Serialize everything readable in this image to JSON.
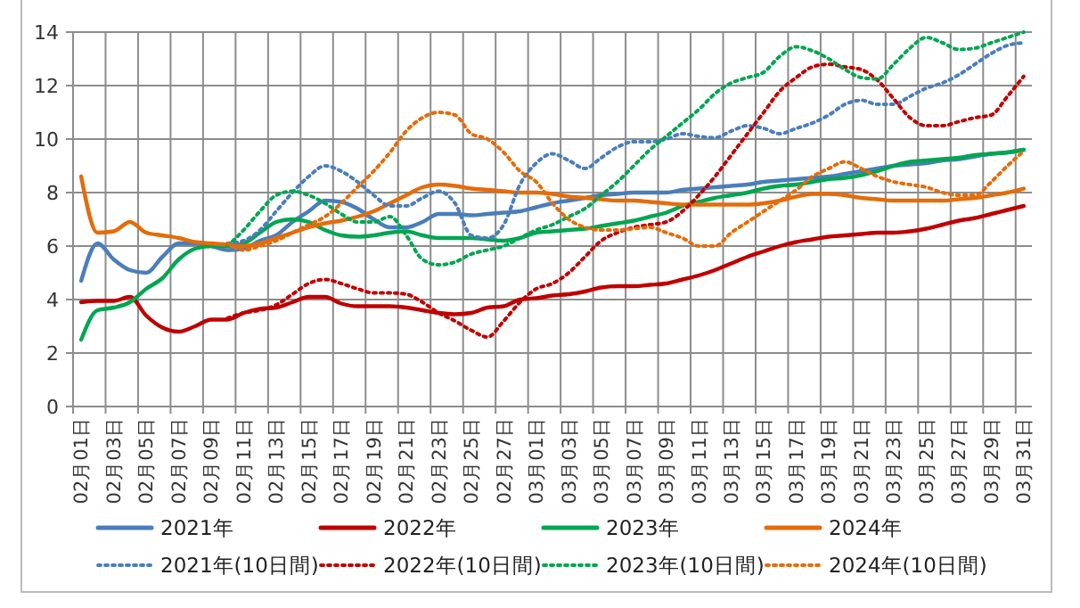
{
  "chart_data": {
    "type": "line",
    "categories": [
      "02月01日",
      null,
      "02月03日",
      null,
      "02月05日",
      null,
      "02月07日",
      null,
      "02月09日",
      null,
      "02月11日",
      null,
      "02月13日",
      null,
      "02月15日",
      null,
      "02月17日",
      null,
      "02月19日",
      null,
      "02月21日",
      null,
      "02月23日",
      null,
      "02月25日",
      null,
      "02月27日",
      null,
      "03月01日",
      null,
      "03月03日",
      null,
      "03月05日",
      null,
      "03月07日",
      null,
      "03月09日",
      null,
      "03月11日",
      null,
      "03月13日",
      null,
      "03月15日",
      null,
      "03月17日",
      null,
      "03月19日",
      null,
      "03月21日",
      null,
      "03月23日",
      null,
      "03月25日",
      null,
      "03月27日",
      null,
      "03月29日",
      null,
      "03月31日"
    ],
    "ylim": [
      0,
      14
    ],
    "yticks": [
      0,
      2,
      4,
      6,
      8,
      10,
      12,
      14
    ],
    "grid": true,
    "legend": "bottom",
    "marker": "none",
    "series": [
      {
        "name": "2021年",
        "color": "#4a7ebb",
        "line_style": "solid",
        "values": [
          4.7,
          6.1,
          5.5,
          5.1,
          5.0,
          5.6,
          6.1,
          6.1,
          6.0,
          5.85,
          5.9,
          6.2,
          6.4,
          6.9,
          7.3,
          7.7,
          7.65,
          7.4,
          7.0,
          6.7,
          6.7,
          6.9,
          7.2,
          7.2,
          7.15,
          7.2,
          7.25,
          7.3,
          7.45,
          7.6,
          7.7,
          7.8,
          7.9,
          7.95,
          8.0,
          8.0,
          8.0,
          8.1,
          8.15,
          8.2,
          8.25,
          8.3,
          8.4,
          8.45,
          8.5,
          8.55,
          8.6,
          8.7,
          8.8,
          8.9,
          9.0,
          9.05,
          9.1,
          9.2,
          9.25,
          9.35,
          9.45,
          9.5,
          9.6
        ]
      },
      {
        "name": "2022年",
        "color": "#c00000",
        "line_style": "solid",
        "values": [
          3.9,
          3.95,
          3.95,
          4.1,
          3.4,
          2.95,
          2.8,
          3.0,
          3.25,
          3.25,
          3.5,
          3.65,
          3.7,
          3.9,
          4.1,
          4.1,
          3.85,
          3.75,
          3.75,
          3.75,
          3.7,
          3.6,
          3.5,
          3.45,
          3.5,
          3.7,
          3.75,
          4.0,
          4.05,
          4.15,
          4.2,
          4.3,
          4.45,
          4.5,
          4.5,
          4.55,
          4.6,
          4.75,
          4.9,
          5.1,
          5.35,
          5.6,
          5.8,
          6.0,
          6.15,
          6.25,
          6.35,
          6.4,
          6.45,
          6.5,
          6.5,
          6.55,
          6.65,
          6.8,
          6.95,
          7.05,
          7.2,
          7.35,
          7.5
        ]
      },
      {
        "name": "2023年",
        "color": "#00a651",
        "line_style": "solid",
        "values": [
          2.5,
          3.6,
          3.7,
          3.9,
          4.4,
          4.8,
          5.5,
          5.9,
          6.0,
          6.0,
          6.1,
          6.5,
          6.9,
          7.0,
          6.9,
          6.6,
          6.4,
          6.35,
          6.4,
          6.5,
          6.55,
          6.4,
          6.3,
          6.3,
          6.3,
          6.25,
          6.2,
          6.3,
          6.5,
          6.55,
          6.6,
          6.65,
          6.75,
          6.85,
          6.95,
          7.1,
          7.25,
          7.5,
          7.65,
          7.8,
          7.9,
          8.0,
          8.15,
          8.25,
          8.3,
          8.4,
          8.5,
          8.55,
          8.65,
          8.8,
          9.0,
          9.15,
          9.2,
          9.25,
          9.3,
          9.4,
          9.45,
          9.5,
          9.6
        ]
      },
      {
        "name": "2024年",
        "color": "#e46c0a",
        "line_style": "solid",
        "values": [
          8.6,
          6.5,
          6.55,
          6.9,
          6.5,
          6.4,
          6.3,
          6.15,
          6.1,
          6.05,
          6.0,
          6.1,
          6.3,
          6.5,
          6.7,
          6.85,
          6.95,
          7.1,
          7.3,
          7.6,
          7.9,
          8.2,
          8.3,
          8.25,
          8.15,
          8.1,
          8.05,
          8.0,
          8.0,
          7.95,
          7.85,
          7.8,
          7.75,
          7.7,
          7.7,
          7.65,
          7.6,
          7.55,
          7.55,
          7.55,
          7.55,
          7.55,
          7.6,
          7.7,
          7.85,
          7.95,
          7.95,
          7.9,
          7.8,
          7.75,
          7.7,
          7.7,
          7.7,
          7.7,
          7.75,
          7.8,
          7.9,
          8.0,
          8.15
        ]
      },
      {
        "name": "2021年(10日間)",
        "color": "#4a7ebb",
        "line_style": "dotted",
        "values": [
          null,
          null,
          null,
          null,
          null,
          null,
          null,
          null,
          null,
          6.1,
          6.2,
          6.6,
          7.3,
          8.0,
          8.6,
          9.0,
          8.8,
          8.4,
          7.9,
          7.5,
          7.5,
          7.8,
          8.05,
          7.6,
          6.4,
          6.3,
          6.8,
          8.3,
          9.1,
          9.45,
          9.2,
          8.9,
          9.3,
          9.7,
          9.9,
          9.9,
          10.0,
          10.2,
          10.1,
          10.05,
          10.3,
          10.5,
          10.4,
          10.2,
          10.4,
          10.6,
          10.9,
          11.3,
          11.45,
          11.3,
          11.3,
          11.6,
          11.9,
          12.1,
          12.4,
          12.8,
          13.2,
          13.5,
          13.6
        ]
      },
      {
        "name": "2022年(10日間)",
        "color": "#c00000",
        "line_style": "dotted",
        "values": [
          null,
          null,
          null,
          null,
          null,
          null,
          null,
          null,
          null,
          3.3,
          3.5,
          3.6,
          3.8,
          4.2,
          4.6,
          4.75,
          4.6,
          4.4,
          4.25,
          4.25,
          4.2,
          3.9,
          3.5,
          3.2,
          2.85,
          2.6,
          3.2,
          3.9,
          4.4,
          4.6,
          5.0,
          5.6,
          6.2,
          6.5,
          6.7,
          6.8,
          6.9,
          7.3,
          7.9,
          8.6,
          9.4,
          10.2,
          11.0,
          11.8,
          12.3,
          12.7,
          12.8,
          12.7,
          12.6,
          12.2,
          11.5,
          10.8,
          10.5,
          10.5,
          10.65,
          10.8,
          10.9,
          11.6,
          12.35
        ]
      },
      {
        "name": "2023年(10日間)",
        "color": "#00a651",
        "line_style": "dotted",
        "values": [
          null,
          null,
          null,
          null,
          null,
          null,
          null,
          null,
          null,
          6.0,
          6.6,
          7.3,
          7.9,
          8.05,
          7.9,
          7.6,
          7.2,
          6.9,
          6.9,
          7.1,
          6.4,
          5.5,
          5.3,
          5.4,
          5.7,
          5.85,
          6.0,
          6.3,
          6.6,
          6.8,
          7.1,
          7.4,
          7.9,
          8.4,
          9.0,
          9.6,
          10.1,
          10.6,
          11.1,
          11.7,
          12.1,
          12.3,
          12.5,
          13.1,
          13.45,
          13.3,
          13.0,
          12.6,
          12.3,
          12.25,
          12.8,
          13.4,
          13.8,
          13.6,
          13.35,
          13.4,
          13.6,
          13.8,
          14.0
        ]
      },
      {
        "name": "2024年(10日間)",
        "color": "#e46c0a",
        "line_style": "dotted",
        "values": [
          null,
          null,
          null,
          null,
          null,
          null,
          null,
          null,
          null,
          6.1,
          5.85,
          6.0,
          6.2,
          6.5,
          6.8,
          7.1,
          7.6,
          8.2,
          8.8,
          9.5,
          10.3,
          10.8,
          11.0,
          10.9,
          10.2,
          10.0,
          9.5,
          8.8,
          8.4,
          7.6,
          7.0,
          6.7,
          6.6,
          6.6,
          6.65,
          6.7,
          6.5,
          6.3,
          6.0,
          6.0,
          6.5,
          6.9,
          7.3,
          7.7,
          8.1,
          8.6,
          8.9,
          9.15,
          8.9,
          8.6,
          8.4,
          8.3,
          8.2,
          8.0,
          7.9,
          7.9,
          8.4,
          9.0,
          9.55
        ]
      }
    ]
  }
}
